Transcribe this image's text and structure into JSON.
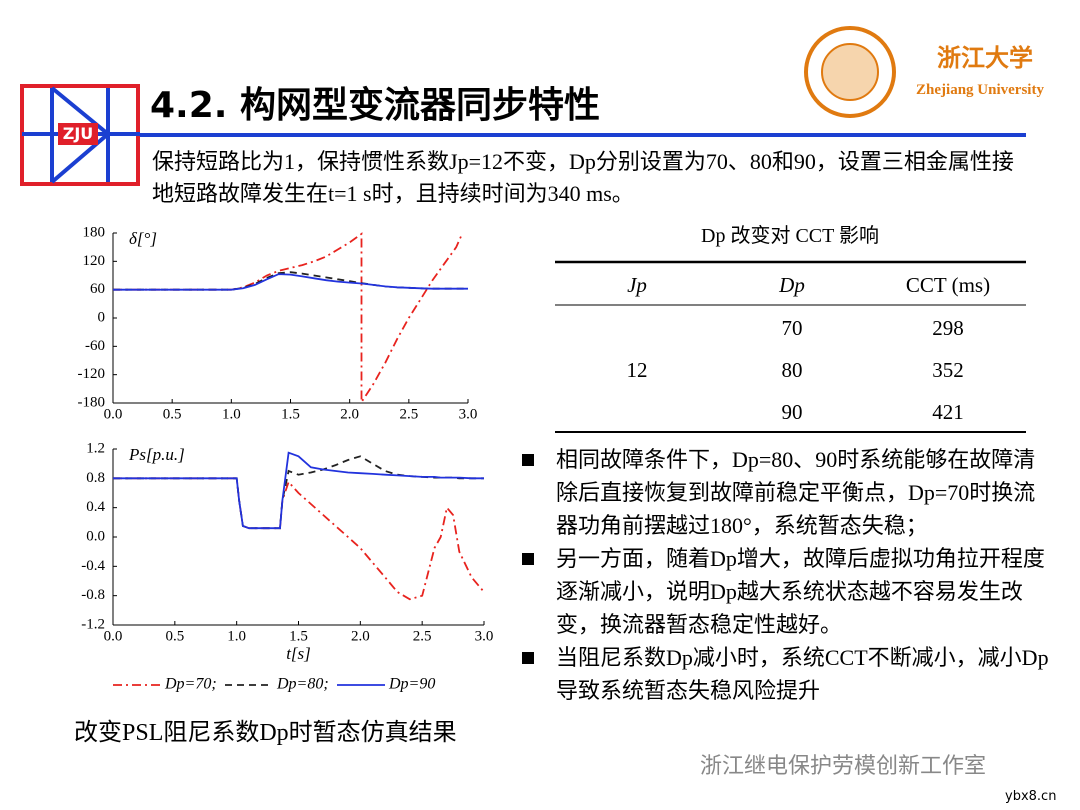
{
  "header": {
    "title": "4.2. 构网型变流器同步特性",
    "logo_text": "ZJU",
    "university_cn": "浙江大学",
    "university_en": "Zhejiang University"
  },
  "intro": "保持短路比为1，保持惯性系数Jp=12不变，Dp分别设置为70、80和90，设置三相金属性接地短路故障发生在t=1 s时，且持续时间为340 ms。",
  "chart_data": [
    {
      "type": "line",
      "y_label": "δ[°]",
      "x": [
        0,
        0.5,
        1.0,
        1.1,
        1.2,
        1.3,
        1.4,
        1.5,
        1.6,
        1.7,
        1.8,
        1.9,
        2.0,
        2.1,
        2.1,
        2.2,
        2.3,
        2.4,
        2.5,
        2.6,
        2.7,
        2.8,
        2.9,
        2.95,
        3.0
      ],
      "xlim": [
        0,
        3
      ],
      "ylim": [
        -180,
        180
      ],
      "xticks": [
        {
          "value": 0,
          "label": "0.0"
        },
        {
          "value": 0.5,
          "label": "0.5"
        },
        {
          "value": 1,
          "label": "1.0"
        },
        {
          "value": 1.5,
          "label": "1.5"
        },
        {
          "value": 2,
          "label": "2.0"
        },
        {
          "value": 2.5,
          "label": "2.5"
        },
        {
          "value": 3,
          "label": "3.0"
        }
      ],
      "yticks": [
        180,
        120,
        60,
        0,
        -60,
        -120,
        -180
      ],
      "series": [
        {
          "color": "#e8231e",
          "dash": "dashdot",
          "values": [
            60,
            60,
            60,
            65,
            75,
            90,
            100,
            106,
            112,
            120,
            130,
            145,
            160,
            178,
            -178,
            -140,
            -95,
            -45,
            0,
            40,
            80,
            115,
            150,
            178,
            null
          ]
        },
        {
          "color": "#222222",
          "dash": "dashed",
          "values": [
            60,
            60,
            60,
            64,
            72,
            85,
            95,
            97,
            94,
            90,
            86,
            82,
            78,
            74,
            74,
            70,
            67,
            65,
            64,
            63,
            62,
            62,
            62,
            62,
            62
          ]
        },
        {
          "color": "#2233dd",
          "dash": "solid",
          "values": [
            60,
            60,
            60,
            63,
            70,
            82,
            93,
            92,
            88,
            84,
            80,
            77,
            75,
            73,
            73,
            70,
            67,
            65,
            64,
            63,
            62,
            62,
            62,
            62,
            62
          ]
        }
      ]
    },
    {
      "type": "line",
      "y_label": "Ps[p.u.]",
      "x_label": "t[s]",
      "x": [
        0,
        0.5,
        1.0,
        1.02,
        1.05,
        1.1,
        1.2,
        1.3,
        1.35,
        1.37,
        1.42,
        1.5,
        1.6,
        1.7,
        1.8,
        1.9,
        2.0,
        2.1,
        2.2,
        2.3,
        2.4,
        2.5,
        2.6,
        2.65,
        2.7,
        2.75,
        2.8,
        2.9,
        3.0
      ],
      "xlim": [
        0,
        3
      ],
      "ylim": [
        -1.2,
        1.2
      ],
      "xticks": [
        {
          "value": 0,
          "label": "0.0"
        },
        {
          "value": 0.5,
          "label": "0.5"
        },
        {
          "value": 1,
          "label": "1.0"
        },
        {
          "value": 1.5,
          "label": "1.5"
        },
        {
          "value": 2,
          "label": "2.0"
        },
        {
          "value": 2.5,
          "label": "2.5"
        },
        {
          "value": 3,
          "label": "3.0"
        }
      ],
      "yticks": [
        1.2,
        0.8,
        0.4,
        {
          "value": 0,
          "label": "0.0"
        },
        -0.4,
        -0.8,
        -1.2
      ],
      "series": [
        {
          "name": "Dp=70;",
          "color": "#e8231e",
          "dash": "dashdot",
          "values": [
            0.8,
            0.8,
            0.8,
            0.5,
            0.15,
            0.12,
            0.12,
            0.12,
            0.12,
            0.5,
            0.75,
            0.6,
            0.45,
            0.3,
            0.15,
            0.0,
            -0.15,
            -0.35,
            -0.55,
            -0.75,
            -0.85,
            -0.8,
            -0.15,
            0.0,
            0.4,
            0.3,
            -0.2,
            -0.55,
            -0.75
          ]
        },
        {
          "name": "Dp=80;",
          "color": "#222222",
          "dash": "dashed",
          "values": [
            0.8,
            0.8,
            0.8,
            0.5,
            0.15,
            0.12,
            0.12,
            0.12,
            0.12,
            0.5,
            0.9,
            0.85,
            0.88,
            0.92,
            0.98,
            1.05,
            1.1,
            1.0,
            0.9,
            0.85,
            0.83,
            0.82,
            0.81,
            0.81,
            0.81,
            0.81,
            0.8,
            0.8,
            0.8
          ]
        },
        {
          "name": "Dp=90",
          "color": "#2233dd",
          "dash": "solid",
          "values": [
            0.8,
            0.8,
            0.8,
            0.5,
            0.15,
            0.12,
            0.12,
            0.12,
            0.12,
            0.5,
            1.15,
            1.1,
            0.95,
            0.92,
            0.9,
            0.88,
            0.87,
            0.86,
            0.85,
            0.84,
            0.83,
            0.82,
            0.82,
            0.81,
            0.81,
            0.81,
            0.81,
            0.8,
            0.8
          ]
        }
      ]
    }
  ],
  "caption": "改变PSL阻尼系数Dp时暂态仿真结果",
  "table": {
    "title": "Dp 改变对 CCT 影响",
    "headers": [
      "Jp",
      "Dp",
      "CCT (ms)"
    ],
    "jp": 12,
    "rows": [
      [
        70,
        298
      ],
      [
        80,
        352
      ],
      [
        90,
        421
      ]
    ]
  },
  "bullets": [
    "相同故障条件下，Dp=80、90时系统能够在故障清除后直接恢复到故障前稳定平衡点，Dp=70时换流器功角前摆越过180°，系统暂态失稳；",
    "另一方面，随着Dp增大，故障后虚拟功角拉开程度逐渐减小，说明Dp越大系统状态越不容易发生改变，换流器暂态稳定性越好。",
    "当阻尼系数Dp减小时，系统CCT不断减小，减小Dp导致系统暂态失稳风险提升"
  ],
  "watermark": {
    "account": "浙江继电保护劳模创新工作室",
    "site": "ybx8.cn"
  }
}
